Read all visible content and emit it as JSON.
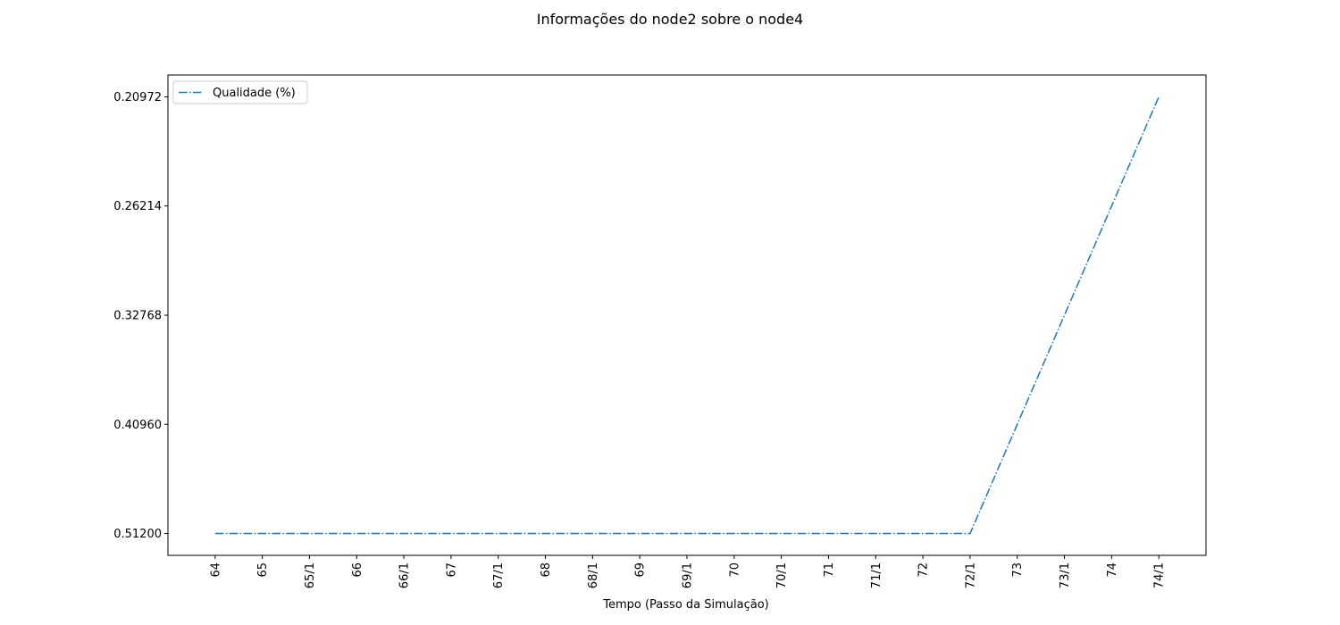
{
  "chart_data": {
    "type": "line",
    "title": "Informações do node2 sobre o node4",
    "x_label": "Tempo (Passo da Simulação)",
    "categories": [
      "64",
      "65",
      "65/1",
      "66",
      "66/1",
      "67",
      "67/1",
      "68",
      "68/1",
      "69",
      "69/1",
      "70",
      "70/1",
      "71",
      "71/1",
      "72",
      "72/1",
      "73",
      "73/1",
      "74",
      "74/1"
    ],
    "series": [
      {
        "name": "Qualidade (%)",
        "color": "#1f77b4",
        "values": [
          0.512,
          0.512,
          0.512,
          0.512,
          0.512,
          0.512,
          0.512,
          0.512,
          0.512,
          0.512,
          0.512,
          0.512,
          0.512,
          0.512,
          0.512,
          0.512,
          0.512,
          0.4096,
          0.32768,
          0.262144,
          0.2097152
        ]
      }
    ],
    "yticks": [
      {
        "value": 0.512,
        "label": "0.51200"
      },
      {
        "value": 0.4096,
        "label": "0.40960"
      },
      {
        "value": 0.32768,
        "label": "0.32768"
      },
      {
        "value": 0.262144,
        "label": "0.26214"
      },
      {
        "value": 0.2097152,
        "label": "0.20972"
      }
    ],
    "legend": "upper left"
  }
}
